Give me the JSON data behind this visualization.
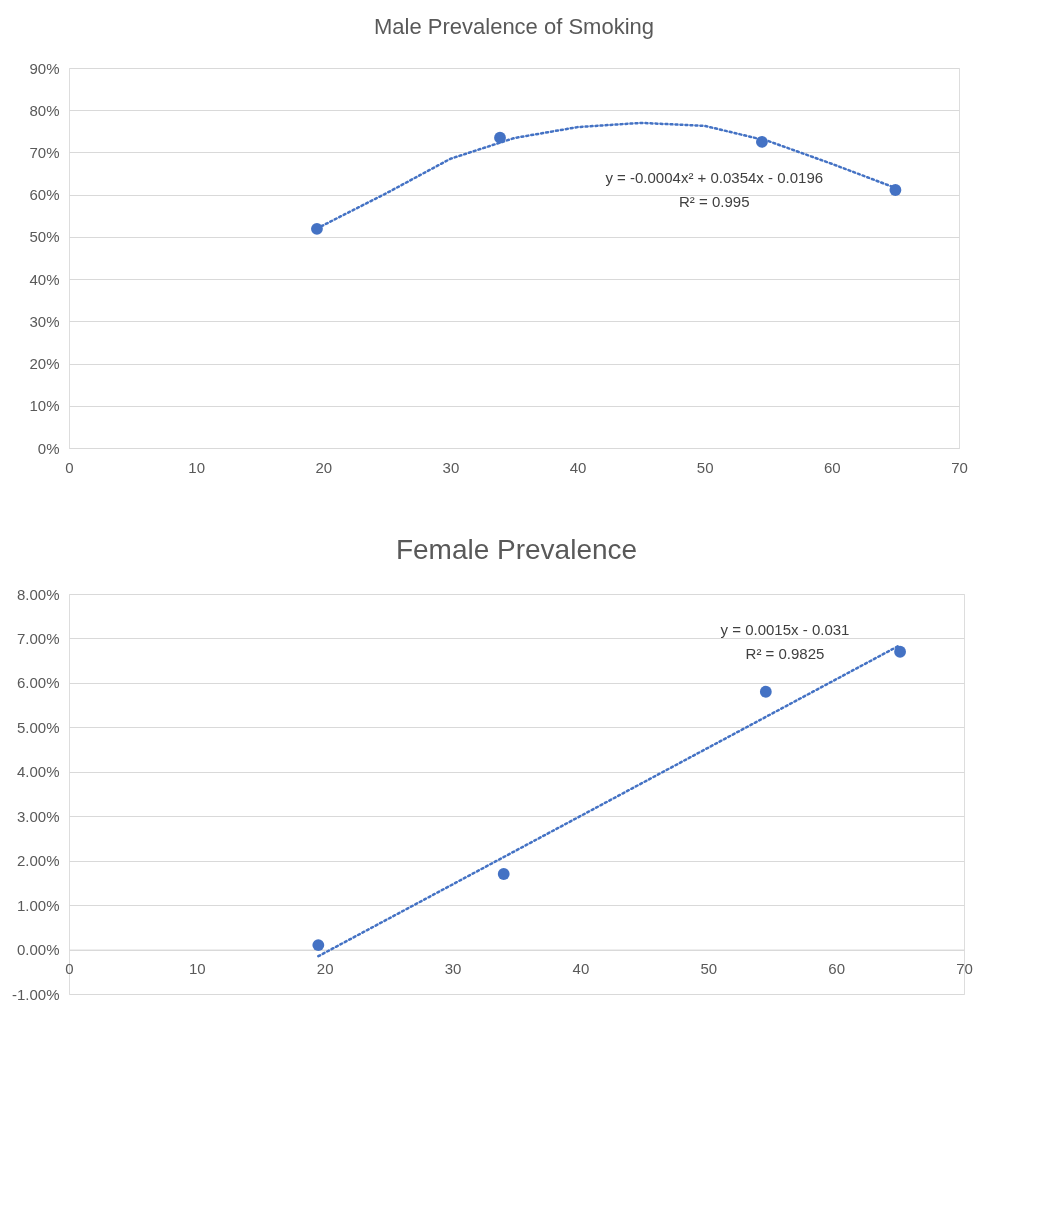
{
  "chart_data": [
    {
      "type": "scatter",
      "title": "Male Prevalence of Smoking",
      "xlim": [
        0,
        70
      ],
      "xticks": [
        0,
        10,
        20,
        30,
        40,
        50,
        60,
        70
      ],
      "ylim": [
        0,
        90
      ],
      "yticks": [
        {
          "value": 0,
          "label": "0%"
        },
        {
          "value": 10,
          "label": "10%"
        },
        {
          "value": 20,
          "label": "20%"
        },
        {
          "value": 30,
          "label": "30%"
        },
        {
          "value": 40,
          "label": "40%"
        },
        {
          "value": 50,
          "label": "50%"
        },
        {
          "value": 60,
          "label": "60%"
        },
        {
          "value": 70,
          "label": "70%"
        },
        {
          "value": 80,
          "label": "80%"
        },
        {
          "value": 90,
          "label": "90%"
        }
      ],
      "grid": "y",
      "series": [
        {
          "type": "scatter",
          "marker": "circle",
          "color": "#4472c4",
          "x": [
            19.5,
            33.9,
            54.5,
            65.0
          ],
          "values": [
            51.9,
            73.5,
            72.5,
            61.1
          ]
        },
        {
          "type": "line",
          "marker": "none",
          "line_style": "dotted",
          "color": "#4472c4",
          "x": [
            19.5,
            25,
            30,
            35,
            40,
            45,
            50,
            55,
            60,
            65
          ],
          "values": [
            52.0,
            60.4,
            68.5,
            73.4,
            76.0,
            77.0,
            76.3,
            72.7,
            67.3,
            61.6
          ]
        }
      ],
      "annotations": [
        "y = -0.0004x² + 0.0354x - 0.0196",
        "R² = 0.995"
      ]
    },
    {
      "type": "scatter",
      "title": "Female Prevalence",
      "xlim": [
        0,
        70
      ],
      "xticks": [
        0,
        10,
        20,
        30,
        40,
        50,
        60,
        70
      ],
      "ylim": [
        -1,
        8
      ],
      "yticks": [
        {
          "value": -1,
          "label": "-1.00%"
        },
        {
          "value": 0,
          "label": "0.00%"
        },
        {
          "value": 1,
          "label": "1.00%"
        },
        {
          "value": 2,
          "label": "2.00%"
        },
        {
          "value": 3,
          "label": "3.00%"
        },
        {
          "value": 4,
          "label": "4.00%"
        },
        {
          "value": 5,
          "label": "5.00%"
        },
        {
          "value": 6,
          "label": "6.00%"
        },
        {
          "value": 7,
          "label": "7.00%"
        },
        {
          "value": 8,
          "label": "8.00%"
        }
      ],
      "grid": "y",
      "series": [
        {
          "type": "scatter",
          "marker": "circle",
          "color": "#4472c4",
          "x": [
            19.5,
            34.0,
            54.5,
            65.0
          ],
          "values": [
            0.1,
            1.7,
            5.8,
            6.7
          ]
        },
        {
          "type": "line",
          "marker": "none",
          "line_style": "dotted",
          "color": "#4472c4",
          "x": [
            19.5,
            65.0
          ],
          "values": [
            -0.15,
            6.85
          ]
        }
      ],
      "annotations": [
        "y = 0.0015x - 0.031",
        "R² = 0.9825"
      ]
    }
  ]
}
